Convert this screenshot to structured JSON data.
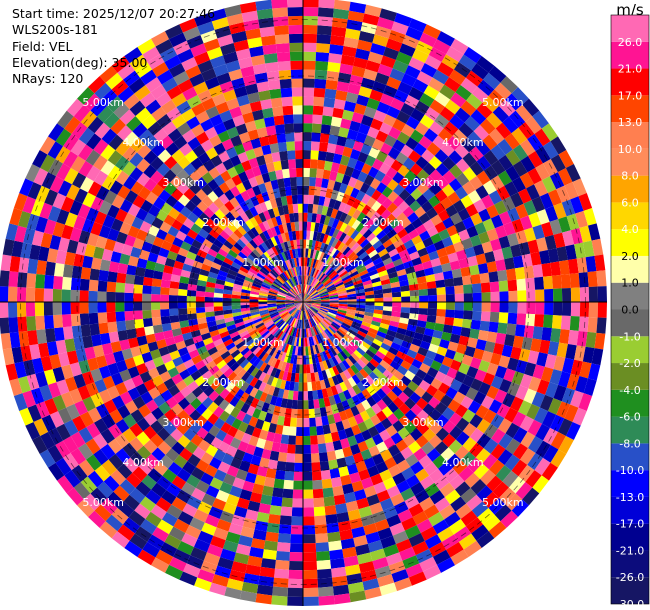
{
  "info": {
    "start_time": "Start time: 2025/12/07 20:27:46",
    "site": "WLS200s-181",
    "field": "Field: VEL",
    "elevation": "Elevation(deg): 35.00",
    "nrays": "NRays: 120"
  },
  "chart_data": {
    "type": "heatmap",
    "subtype": "radar-ppi",
    "field": "VEL",
    "unit": "m/s",
    "n_rays": 120,
    "elevation_deg": 35.0,
    "range_rings": [
      {
        "label": "1.00km"
      },
      {
        "label": "2.00km"
      },
      {
        "label": "3.00km"
      },
      {
        "label": "4.00km"
      },
      {
        "label": "5.00km"
      }
    ],
    "range_rings_km": [
      1,
      2,
      3,
      4,
      5
    ],
    "max_range_km": 5.38,
    "colorbar": {
      "unit": "m/s",
      "levels": [
        -30.0,
        -26.0,
        -21.0,
        -17.0,
        -13.0,
        -10.0,
        -8.0,
        -6.0,
        -4.0,
        -2.0,
        -1.0,
        0.0,
        1.0,
        2.0,
        4.0,
        6.0,
        8.0,
        10.0,
        13.0,
        17.0,
        21.0,
        26.0
      ],
      "tick_labels": [
        "-30.0",
        "-26.0",
        "-21.0",
        "-17.0",
        "-13.0",
        "-10.0",
        "-8.0",
        "-6.0",
        "-4.0",
        "-2.0",
        "-1.0",
        "0.0",
        "1.0",
        "2.0",
        "4.0",
        "6.0",
        "8.0",
        "10.0",
        "13.0",
        "17.0",
        "21.0",
        "26.0"
      ],
      "colors": [
        "#161664",
        "#0c0c7c",
        "#000090",
        "#0000d8",
        "#0000ff",
        "#2850c8",
        "#2e8b57",
        "#1f8f1f",
        "#6b8e23",
        "#9acd32",
        "#696969",
        "#808080",
        "#ffffaa",
        "#ffff00",
        "#ffd700",
        "#ffa500",
        "#ff8c5a",
        "#ff7f50",
        "#ff4500",
        "#ff0000",
        "#ff1493",
        "#ff69b4"
      ]
    }
  }
}
